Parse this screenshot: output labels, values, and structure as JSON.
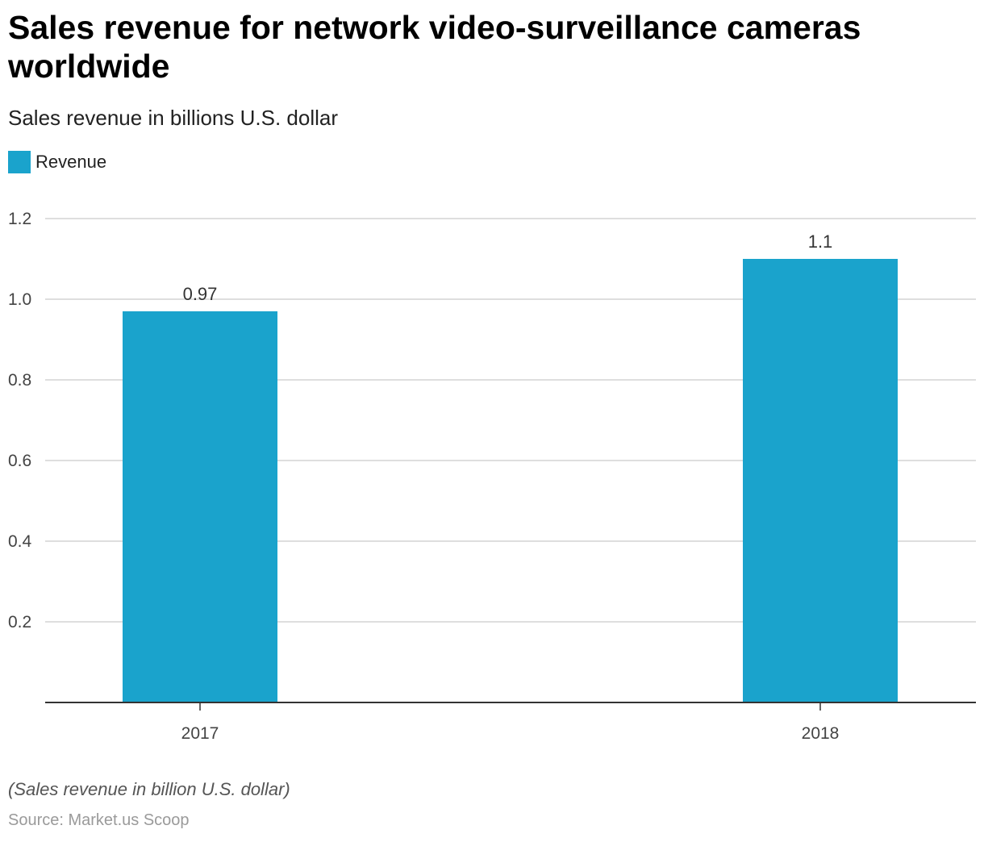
{
  "chart_data": {
    "type": "bar",
    "title": "Sales revenue for network video-surveillance cameras worldwide",
    "subtitle": "Sales revenue in billions U.S. dollar",
    "categories": [
      "2017",
      "2018"
    ],
    "series": [
      {
        "name": "Revenue",
        "values": [
          0.97,
          1.1
        ],
        "labels": [
          "0.97",
          "1.1"
        ],
        "color": "#1aa3cc"
      }
    ],
    "ylim": [
      0,
      1.2
    ],
    "yticks": [
      0.2,
      0.4,
      0.6,
      0.8,
      1.0,
      1.2
    ],
    "ytick_labels": [
      "0.2",
      "0.4",
      "0.6",
      "0.8",
      "1.0",
      "1.2"
    ],
    "grid": true,
    "legend_position": "top-left"
  },
  "footer": {
    "note": "(Sales revenue in billion U.S. dollar)",
    "source": "Source: Market.us Scoop"
  }
}
